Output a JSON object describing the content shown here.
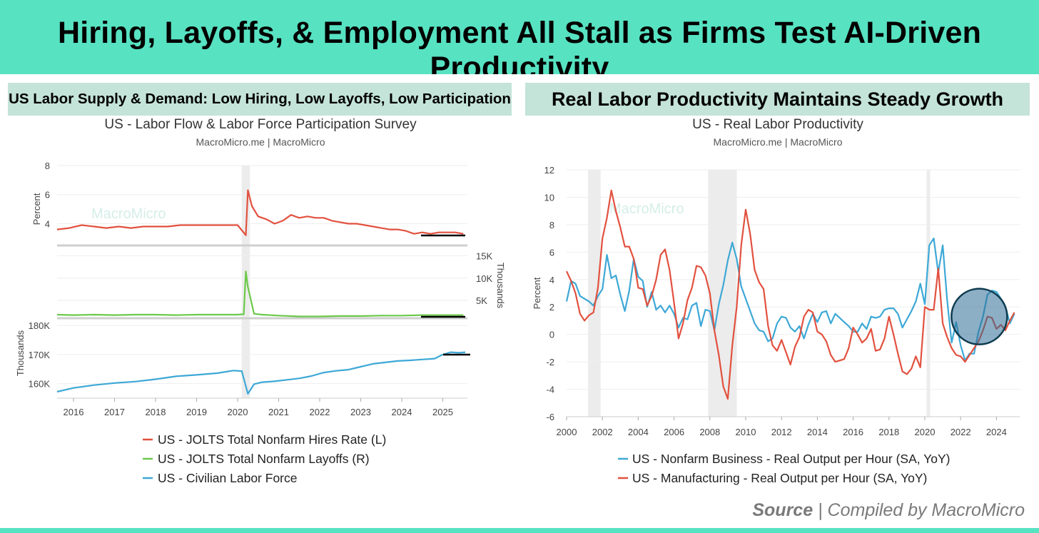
{
  "header": {
    "title": "Hiring, Layoffs, & Employment All Stall as Firms Test AI-Driven Productivity"
  },
  "left_panel": {
    "heading": "US Labor Supply & Demand: Low Hiring, Low Layoffs, Low Participation"
  },
  "right_panel": {
    "heading": "Real Labor Productivity Maintains Steady Growth"
  },
  "watermark": "MacroMicro",
  "source": {
    "label": "Source",
    "separator": "|",
    "text": "Compiled by MacroMicro"
  },
  "colors": {
    "accent": "#57e2c2",
    "subheader_bg": "#c4e3d9",
    "red": "#e2513f",
    "green": "#6cc94a",
    "blue": "#3da8d6",
    "recession": "#ececec"
  },
  "chart_data": [
    {
      "type": "line",
      "title": "US - Labor Flow & Labor Force Participation Survey",
      "subtitle": "MacroMicro.me | MacroMicro",
      "x_ticks": [
        "2016",
        "2017",
        "2018",
        "2019",
        "2020",
        "2021",
        "2022",
        "2023",
        "2024",
        "2025"
      ],
      "xlim": [
        2015.6,
        2025.6
      ],
      "recession": [
        [
          2020.1,
          2020.3
        ]
      ],
      "legend_position": "bottom",
      "panels": [
        {
          "ylabel": "Percent",
          "axis_side": "left",
          "ylim": [
            2.5,
            8
          ],
          "yticks": [
            "4",
            "6",
            "8"
          ],
          "yticks_values": [
            4,
            6,
            8
          ]
        },
        {
          "ylabel": "Thousands",
          "axis_side": "right",
          "ylim": [
            1,
            17
          ],
          "yticks": [
            "5K",
            "10K",
            "15K"
          ],
          "yticks_values": [
            5,
            10,
            15
          ]
        },
        {
          "ylabel": "Thousands",
          "axis_side": "left",
          "ylim": [
            155,
            182
          ],
          "yticks": [
            "160K",
            "170K",
            "180K"
          ],
          "yticks_values": [
            160,
            170,
            180
          ]
        }
      ],
      "series": [
        {
          "name": "US - JOLTS Total Nonfarm Hires Rate (L)",
          "color": "#e2513f",
          "panel": 0,
          "x": [
            2015.6,
            2015.9,
            2016.2,
            2016.5,
            2016.8,
            2017.1,
            2017.4,
            2017.7,
            2018.0,
            2018.3,
            2018.6,
            2018.9,
            2019.2,
            2019.5,
            2019.8,
            2020.0,
            2020.2,
            2020.25,
            2020.35,
            2020.5,
            2020.7,
            2020.9,
            2021.1,
            2021.3,
            2021.5,
            2021.7,
            2021.9,
            2022.1,
            2022.3,
            2022.5,
            2022.7,
            2022.9,
            2023.1,
            2023.3,
            2023.5,
            2023.7,
            2023.9,
            2024.1,
            2024.3,
            2024.5,
            2024.7,
            2024.9,
            2025.1,
            2025.3,
            2025.5
          ],
          "values": [
            3.6,
            3.7,
            3.9,
            3.8,
            3.7,
            3.8,
            3.7,
            3.8,
            3.8,
            3.8,
            3.9,
            3.9,
            3.9,
            3.9,
            3.9,
            3.9,
            3.2,
            6.3,
            5.2,
            4.5,
            4.3,
            4.0,
            4.2,
            4.6,
            4.4,
            4.5,
            4.4,
            4.4,
            4.2,
            4.1,
            4.0,
            4.0,
            3.9,
            3.8,
            3.7,
            3.6,
            3.6,
            3.5,
            3.3,
            3.4,
            3.3,
            3.4,
            3.4,
            3.4,
            3.3
          ]
        },
        {
          "name": "US - JOLTS Total Nonfarm Layoffs (R)",
          "color": "#6cc94a",
          "panel": 1,
          "x": [
            2015.6,
            2016.0,
            2016.5,
            2017.0,
            2017.5,
            2018.0,
            2018.5,
            2019.0,
            2019.5,
            2020.0,
            2020.15,
            2020.2,
            2020.25,
            2020.4,
            2020.6,
            2021.0,
            2021.5,
            2022.0,
            2022.5,
            2023.0,
            2023.5,
            2024.0,
            2024.5,
            2025.0,
            2025.5
          ],
          "values": [
            1.8,
            1.7,
            1.8,
            1.7,
            1.8,
            1.8,
            1.7,
            1.8,
            1.8,
            1.8,
            1.9,
            11.5,
            8.0,
            2.0,
            1.8,
            1.6,
            1.4,
            1.4,
            1.5,
            1.5,
            1.6,
            1.6,
            1.7,
            1.7,
            1.7
          ]
        },
        {
          "name": "US - Civilian Labor Force",
          "color": "#3da8d6",
          "panel": 2,
          "x": [
            2015.6,
            2016.0,
            2016.5,
            2017.0,
            2017.5,
            2018.0,
            2018.5,
            2019.0,
            2019.5,
            2019.9,
            2020.1,
            2020.25,
            2020.4,
            2020.6,
            2020.9,
            2021.2,
            2021.5,
            2021.8,
            2022.1,
            2022.4,
            2022.7,
            2023.0,
            2023.3,
            2023.6,
            2023.9,
            2024.2,
            2024.5,
            2024.8,
            2025.0,
            2025.2,
            2025.4,
            2025.55
          ],
          "values": [
            157.2,
            158.5,
            159.5,
            160.2,
            160.7,
            161.5,
            162.5,
            163.0,
            163.6,
            164.5,
            164.3,
            156.5,
            159.8,
            160.5,
            160.8,
            161.3,
            161.8,
            162.6,
            163.8,
            164.4,
            164.8,
            165.8,
            166.8,
            167.3,
            167.8,
            168.0,
            168.3,
            168.6,
            170.0,
            170.8,
            170.6,
            170.8
          ]
        }
      ]
    },
    {
      "type": "line",
      "title": "US - Real Labor Productivity",
      "subtitle": "MacroMicro.me | MacroMicro",
      "ylabel": "Percent",
      "xlim": [
        2000,
        2025.3
      ],
      "ylim": [
        -6,
        12
      ],
      "x_ticks": [
        "2000",
        "2002",
        "2004",
        "2006",
        "2008",
        "2010",
        "2012",
        "2014",
        "2016",
        "2018",
        "2020",
        "2022",
        "2024"
      ],
      "y_ticks": [
        "-6",
        "-4",
        "-2",
        "0",
        "2",
        "4",
        "6",
        "8",
        "10",
        "12"
      ],
      "recession": [
        [
          2001.2,
          2001.9
        ],
        [
          2007.9,
          2009.5
        ],
        [
          2020.1,
          2020.3
        ]
      ],
      "highlight_circle": {
        "x": 2023.6,
        "y": 1.3
      },
      "legend_position": "bottom",
      "series": [
        {
          "name": "US - Nonfarm Business - Real Output per Hour (SA, YoY)",
          "color": "#3da8d6",
          "x": [
            2000.0,
            2000.25,
            2000.5,
            2000.75,
            2001.0,
            2001.25,
            2001.5,
            2001.75,
            2002.0,
            2002.25,
            2002.5,
            2002.75,
            2003.0,
            2003.25,
            2003.5,
            2003.75,
            2004.0,
            2004.25,
            2004.5,
            2004.75,
            2005.0,
            2005.25,
            2005.5,
            2005.75,
            2006.0,
            2006.25,
            2006.5,
            2006.75,
            2007.0,
            2007.25,
            2007.5,
            2007.75,
            2008.0,
            2008.25,
            2008.5,
            2008.75,
            2009.0,
            2009.25,
            2009.5,
            2009.75,
            2010.0,
            2010.25,
            2010.5,
            2010.75,
            2011.0,
            2011.25,
            2011.5,
            2011.75,
            2012.0,
            2012.25,
            2012.5,
            2012.75,
            2013.0,
            2013.25,
            2013.5,
            2013.75,
            2014.0,
            2014.25,
            2014.5,
            2014.75,
            2015.0,
            2015.25,
            2015.5,
            2015.75,
            2016.0,
            2016.25,
            2016.5,
            2016.75,
            2017.0,
            2017.25,
            2017.5,
            2017.75,
            2018.0,
            2018.25,
            2018.5,
            2018.75,
            2019.0,
            2019.25,
            2019.5,
            2019.75,
            2020.0,
            2020.25,
            2020.5,
            2020.75,
            2021.0,
            2021.25,
            2021.5,
            2021.75,
            2022.0,
            2022.25,
            2022.5,
            2022.75,
            2023.0,
            2023.25,
            2023.5,
            2023.75,
            2024.0,
            2024.25,
            2024.5,
            2024.75,
            2025.0
          ],
          "values": [
            2.4,
            3.9,
            3.7,
            2.8,
            2.6,
            2.4,
            2.1,
            2.8,
            3.3,
            5.8,
            4.1,
            4.3,
            2.9,
            1.7,
            3.2,
            5.5,
            4.2,
            3.9,
            2.0,
            3.1,
            1.8,
            2.1,
            1.6,
            2.1,
            1.5,
            0.5,
            1.2,
            1.1,
            2.1,
            2.3,
            0.6,
            1.8,
            1.7,
            0.3,
            2.2,
            3.6,
            5.4,
            6.7,
            5.5,
            3.5,
            2.6,
            1.7,
            0.8,
            0.3,
            0.2,
            -0.5,
            -0.3,
            0.8,
            1.3,
            1.2,
            0.5,
            0.2,
            0.6,
            -0.3,
            0.7,
            1.5,
            0.9,
            1.6,
            1.7,
            0.8,
            1.5,
            1.2,
            0.9,
            0.6,
            0.2,
            0.2,
            0.8,
            0.4,
            1.3,
            1.2,
            1.3,
            1.8,
            1.9,
            1.9,
            1.5,
            0.5,
            1.1,
            1.7,
            2.4,
            3.7,
            2.2,
            6.5,
            7.0,
            4.5,
            6.5,
            2.5,
            -0.6,
            0.9,
            -0.8,
            -1.9,
            -1.4,
            -1.4,
            0.2,
            1.3,
            2.9,
            3.2,
            3.1,
            2.6,
            2.0,
            0.8,
            1.5
          ]
        },
        {
          "name": "US - Manufacturing - Real Output per Hour (SA, YoY)",
          "color": "#e2513f",
          "x": [
            2000.0,
            2000.25,
            2000.5,
            2000.75,
            2001.0,
            2001.25,
            2001.5,
            2001.75,
            2002.0,
            2002.25,
            2002.5,
            2002.75,
            2003.0,
            2003.25,
            2003.5,
            2003.75,
            2004.0,
            2004.25,
            2004.5,
            2004.75,
            2005.0,
            2005.25,
            2005.5,
            2005.75,
            2006.0,
            2006.25,
            2006.5,
            2006.75,
            2007.0,
            2007.25,
            2007.5,
            2007.75,
            2008.0,
            2008.25,
            2008.5,
            2008.75,
            2009.0,
            2009.25,
            2009.5,
            2009.75,
            2010.0,
            2010.25,
            2010.5,
            2010.75,
            2011.0,
            2011.25,
            2011.5,
            2011.75,
            2012.0,
            2012.25,
            2012.5,
            2012.75,
            2013.0,
            2013.25,
            2013.5,
            2013.75,
            2014.0,
            2014.25,
            2014.5,
            2014.75,
            2015.0,
            2015.25,
            2015.5,
            2015.75,
            2016.0,
            2016.25,
            2016.5,
            2016.75,
            2017.0,
            2017.25,
            2017.5,
            2017.75,
            2018.0,
            2018.25,
            2018.5,
            2018.75,
            2019.0,
            2019.25,
            2019.5,
            2019.75,
            2020.0,
            2020.25,
            2020.5,
            2020.75,
            2021.0,
            2021.25,
            2021.5,
            2021.75,
            2022.0,
            2022.25,
            2022.5,
            2022.75,
            2023.0,
            2023.25,
            2023.5,
            2023.75,
            2024.0,
            2024.25,
            2024.5,
            2024.75,
            2025.0
          ],
          "values": [
            4.6,
            3.9,
            3.0,
            1.5,
            1.0,
            1.4,
            1.6,
            3.4,
            7.0,
            8.5,
            10.5,
            9.0,
            7.8,
            6.4,
            6.4,
            5.5,
            3.4,
            3.3,
            2.1,
            2.8,
            4.0,
            5.8,
            6.2,
            4.7,
            2.3,
            -0.3,
            0.8,
            2.5,
            3.4,
            5.0,
            4.9,
            4.3,
            3.0,
            0.3,
            -1.5,
            -3.8,
            -4.7,
            -0.8,
            2.0,
            6.5,
            9.1,
            7.3,
            4.7,
            3.8,
            3.3,
            0.6,
            -0.8,
            -1.2,
            -0.4,
            -1.3,
            -2.2,
            -0.9,
            -0.2,
            1.3,
            1.8,
            1.6,
            0.2,
            0.0,
            -0.5,
            -1.5,
            -2.0,
            -1.9,
            -1.8,
            -1.0,
            0.5,
            0.0,
            -0.6,
            -0.3,
            0.4,
            -1.2,
            -1.1,
            -0.3,
            1.3,
            0.0,
            -1.4,
            -2.7,
            -2.9,
            -2.5,
            -1.6,
            -2.4,
            2.0,
            1.8,
            1.8,
            4.8,
            0.8,
            -0.2,
            -1.0,
            -1.5,
            -1.6,
            -2.0,
            -1.5,
            -1.0,
            -0.5,
            0.3,
            1.3,
            1.2,
            0.4,
            0.7,
            0.3,
            1.0,
            1.6
          ]
        }
      ]
    }
  ]
}
